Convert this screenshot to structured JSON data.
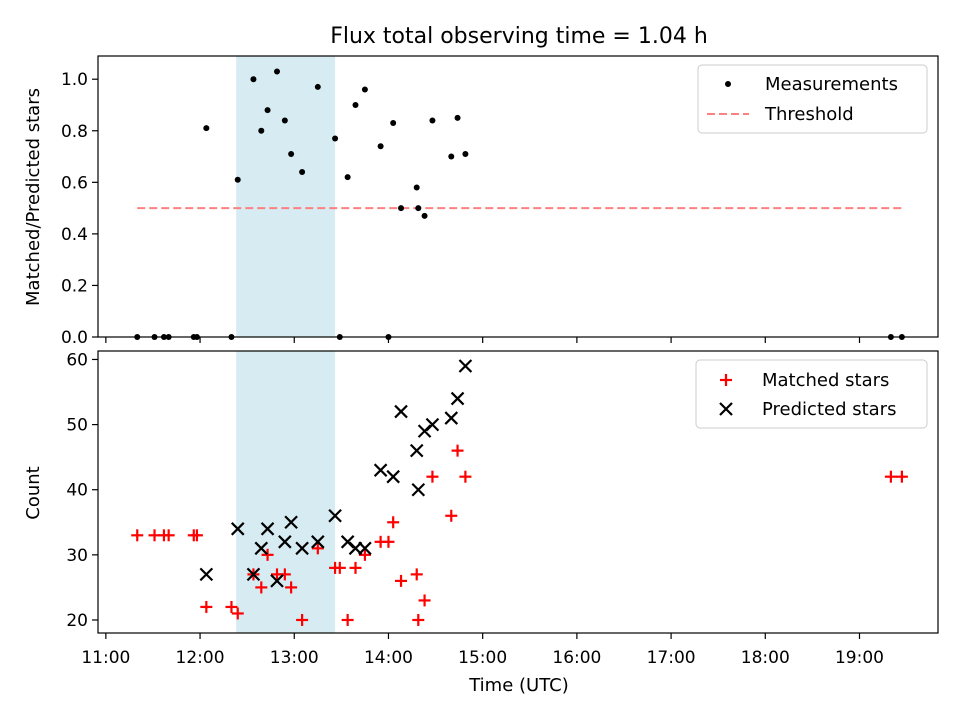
{
  "chart_data": [
    {
      "type": "scatter",
      "title": "Flux total observing time = 1.04 h",
      "ylabel": "Matched/Predicted stars",
      "xlabel": "",
      "xlim": [
        "10:55",
        "19:50"
      ],
      "ylim": [
        0,
        1.09
      ],
      "y_ticks": [
        "0.0",
        "0.2",
        "0.4",
        "0.6",
        "0.8",
        "1.0"
      ],
      "legend_position": "top-right",
      "shaded_interval": [
        "12:23",
        "13:26"
      ],
      "shaded_color": "#add8e6",
      "series": [
        {
          "name": "Measurements",
          "marker": "dot",
          "color": "#000000",
          "points": [
            [
              "11:20",
              0.0
            ],
            [
              "11:31",
              0.0
            ],
            [
              "11:37",
              0.0
            ],
            [
              "11:40",
              0.0
            ],
            [
              "11:56",
              0.0
            ],
            [
              "11:58",
              0.0
            ],
            [
              "12:20",
              0.0
            ],
            [
              "12:04",
              0.81
            ],
            [
              "12:24",
              0.61
            ],
            [
              "12:34",
              1.0
            ],
            [
              "12:39",
              0.8
            ],
            [
              "12:43",
              0.88
            ],
            [
              "12:49",
              1.03
            ],
            [
              "12:54",
              0.84
            ],
            [
              "12:58",
              0.71
            ],
            [
              "13:05",
              0.64
            ],
            [
              "13:15",
              0.97
            ],
            [
              "13:26",
              0.77
            ],
            [
              "13:29",
              0.0
            ],
            [
              "13:34",
              0.62
            ],
            [
              "13:39",
              0.9
            ],
            [
              "13:45",
              0.96
            ],
            [
              "13:55",
              0.74
            ],
            [
              "14:00",
              0.0
            ],
            [
              "14:03",
              0.83
            ],
            [
              "14:08",
              0.5
            ],
            [
              "14:18",
              0.58
            ],
            [
              "14:19",
              0.5
            ],
            [
              "14:23",
              0.47
            ],
            [
              "14:28",
              0.84
            ],
            [
              "14:40",
              0.7
            ],
            [
              "14:44",
              0.85
            ],
            [
              "14:49",
              0.71
            ],
            [
              "19:20",
              0.0
            ],
            [
              "19:27",
              0.0
            ]
          ]
        },
        {
          "name": "Threshold",
          "marker": "dashed-line",
          "color": "#ff8080",
          "points": [
            [
              "11:20",
              0.5
            ],
            [
              "19:27",
              0.5
            ]
          ]
        }
      ]
    },
    {
      "type": "scatter",
      "title": "",
      "ylabel": "Count",
      "xlabel": "Time (UTC)",
      "xlim": [
        "10:55",
        "19:50"
      ],
      "ylim": [
        18,
        61.3
      ],
      "y_ticks": [
        "20",
        "30",
        "40",
        "50",
        "60"
      ],
      "x_ticks": [
        "11:00",
        "12:00",
        "13:00",
        "14:00",
        "15:00",
        "16:00",
        "17:00",
        "18:00",
        "19:00"
      ],
      "legend_position": "top-right",
      "shaded_interval": [
        "12:23",
        "13:26"
      ],
      "shaded_color": "#add8e6",
      "series": [
        {
          "name": "Matched stars",
          "marker": "plus",
          "color": "#ff0000",
          "points": [
            [
              "11:20",
              33
            ],
            [
              "11:31",
              33
            ],
            [
              "11:37",
              33
            ],
            [
              "11:40",
              33
            ],
            [
              "11:56",
              33
            ],
            [
              "11:58",
              33
            ],
            [
              "12:04",
              22
            ],
            [
              "12:20",
              22
            ],
            [
              "12:24",
              21
            ],
            [
              "12:34",
              27
            ],
            [
              "12:39",
              25
            ],
            [
              "12:43",
              30
            ],
            [
              "12:49",
              27
            ],
            [
              "12:54",
              27
            ],
            [
              "12:58",
              25
            ],
            [
              "13:05",
              20
            ],
            [
              "13:15",
              31
            ],
            [
              "13:26",
              28
            ],
            [
              "13:29",
              28
            ],
            [
              "13:34",
              20
            ],
            [
              "13:39",
              28
            ],
            [
              "13:45",
              30
            ],
            [
              "13:55",
              32
            ],
            [
              "14:00",
              32
            ],
            [
              "14:03",
              35
            ],
            [
              "14:08",
              26
            ],
            [
              "14:18",
              27
            ],
            [
              "14:19",
              20
            ],
            [
              "14:23",
              23
            ],
            [
              "14:28",
              42
            ],
            [
              "14:40",
              36
            ],
            [
              "14:44",
              46
            ],
            [
              "14:49",
              42
            ],
            [
              "19:20",
              42
            ],
            [
              "19:27",
              42
            ]
          ]
        },
        {
          "name": "Predicted stars",
          "marker": "x",
          "color": "#000000",
          "points": [
            [
              "12:04",
              27
            ],
            [
              "12:24",
              34
            ],
            [
              "12:34",
              27
            ],
            [
              "12:39",
              31
            ],
            [
              "12:43",
              34
            ],
            [
              "12:49",
              26
            ],
            [
              "12:54",
              32
            ],
            [
              "12:58",
              35
            ],
            [
              "13:05",
              31
            ],
            [
              "13:15",
              32
            ],
            [
              "13:26",
              36
            ],
            [
              "13:34",
              32
            ],
            [
              "13:39",
              31
            ],
            [
              "13:45",
              31
            ],
            [
              "13:55",
              43
            ],
            [
              "14:03",
              42
            ],
            [
              "14:08",
              52
            ],
            [
              "14:18",
              46
            ],
            [
              "14:19",
              40
            ],
            [
              "14:23",
              49
            ],
            [
              "14:28",
              50
            ],
            [
              "14:40",
              51
            ],
            [
              "14:44",
              54
            ],
            [
              "14:49",
              59
            ]
          ]
        }
      ]
    }
  ]
}
